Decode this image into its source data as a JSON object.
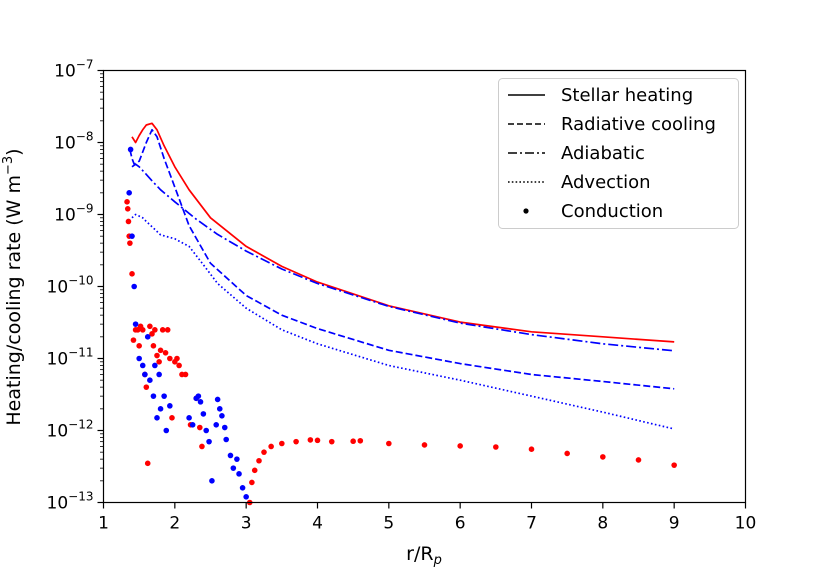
{
  "chart_data": {
    "type": "line",
    "title": "",
    "xlabel": "r/R",
    "xlabel_sub": "p",
    "ylabel": "Heating/cooling rate (W m",
    "ylabel_sup": "−3",
    "ylabel_close": ")",
    "xlim": [
      1,
      10
    ],
    "ylim": [
      1e-13,
      1e-07
    ],
    "yscale": "log",
    "x_ticks": [
      "1",
      "2",
      "3",
      "4",
      "5",
      "6",
      "7",
      "8",
      "9",
      "10"
    ],
    "y_ticks": [
      {
        "base": "10",
        "exp": "−13"
      },
      {
        "base": "10",
        "exp": "−12"
      },
      {
        "base": "10",
        "exp": "−11"
      },
      {
        "base": "10",
        "exp": "−10"
      },
      {
        "base": "10",
        "exp": "−9"
      },
      {
        "base": "10",
        "exp": "−8"
      },
      {
        "base": "10",
        "exp": "−7"
      }
    ],
    "legend_position": "top-right",
    "legend": [
      {
        "label": "Stellar heating",
        "style": "solid"
      },
      {
        "label": "Radiative cooling",
        "style": "dashed"
      },
      {
        "label": "Adiabatic",
        "style": "dashdot"
      },
      {
        "label": "Advection",
        "style": "dotted"
      },
      {
        "label": "Conduction",
        "style": "marker"
      }
    ],
    "colors": {
      "heating": "#ff0000",
      "cooling": "#0000ff",
      "legend_line": "#000000"
    },
    "series": [
      {
        "name": "Stellar heating",
        "color": "#ff0000",
        "style": "solid",
        "x": [
          1.4,
          1.45,
          1.5,
          1.55,
          1.6,
          1.68,
          1.75,
          1.85,
          2.0,
          2.2,
          2.5,
          3.0,
          3.5,
          4.0,
          5.0,
          6.0,
          7.0,
          8.0,
          9.0
        ],
        "y": [
          1.2e-08,
          1e-08,
          1.25e-08,
          1.5e-08,
          1.75e-08,
          1.85e-08,
          1.5e-08,
          9e-09,
          4.6e-09,
          2.2e-09,
          9e-10,
          3.6e-10,
          1.9e-10,
          1.15e-10,
          5.4e-11,
          3.2e-11,
          2.35e-11,
          2e-11,
          1.7e-11
        ]
      },
      {
        "name": "Radiative cooling",
        "color": "#0000ff",
        "style": "dashed",
        "x": [
          1.37,
          1.4,
          1.43,
          1.5,
          1.6,
          1.68,
          1.75,
          1.85,
          2.0,
          2.2,
          2.5,
          3.0,
          3.5,
          4.0,
          5.0,
          6.0,
          7.0,
          8.0,
          9.0
        ],
        "y": [
          8e-09,
          6e-09,
          5e-09,
          5.5e-09,
          1e-08,
          1.5e-08,
          1.2e-08,
          6e-09,
          2.4e-09,
          7e-10,
          2.1e-10,
          7.5e-11,
          4e-11,
          2.6e-11,
          1.3e-11,
          8.5e-12,
          6e-12,
          4.8e-12,
          3.8e-12
        ]
      },
      {
        "name": "Adiabatic",
        "color": "#0000ff",
        "style": "dashdot",
        "x": [
          1.4,
          1.45,
          1.5,
          1.6,
          1.7,
          1.8,
          2.0,
          2.3,
          2.6,
          3.0,
          3.5,
          4.0,
          5.0,
          6.0,
          7.0,
          8.0,
          9.0
        ],
        "y": [
          4.6e-09,
          5e-09,
          4.6e-09,
          3.6e-09,
          2.8e-09,
          2.2e-09,
          1.5e-09,
          8.6e-10,
          5.3e-10,
          3.1e-10,
          1.75e-10,
          1.1e-10,
          5.3e-11,
          3.1e-11,
          2.15e-11,
          1.6e-11,
          1.28e-11
        ]
      },
      {
        "name": "Advection",
        "color": "#0000ff",
        "style": "dotted",
        "x": [
          1.4,
          1.45,
          1.5,
          1.55,
          1.6,
          1.7,
          1.8,
          2.0,
          2.2,
          2.4,
          2.6,
          3.0,
          3.5,
          4.0,
          5.0,
          6.0,
          7.0,
          8.0,
          9.0
        ],
        "y": [
          9e-10,
          1e-09,
          9.5e-10,
          9e-10,
          8e-10,
          6.5e-10,
          5.2e-10,
          4.6e-10,
          3.6e-10,
          2e-10,
          1.1e-10,
          5e-11,
          2.5e-11,
          1.6e-11,
          8e-12,
          5e-12,
          3e-12,
          1.8e-12,
          1.05e-12
        ]
      },
      {
        "name": "Conduction (heating)",
        "color": "#ff0000",
        "style": "marker",
        "x": [
          1.33,
          1.34,
          1.35,
          1.36,
          1.37,
          1.4,
          1.42,
          1.45,
          1.48,
          1.5,
          1.52,
          1.55,
          1.58,
          1.6,
          1.62,
          1.65,
          1.68,
          1.7,
          1.72,
          1.75,
          1.78,
          1.8,
          1.83,
          1.87,
          1.9,
          1.93,
          1.96,
          2.0,
          2.03,
          2.06,
          2.1,
          2.15,
          2.22,
          2.3,
          2.35,
          2.38,
          3.05,
          3.08,
          3.12,
          3.18,
          3.25,
          3.35,
          3.5,
          3.7,
          3.9,
          4.0,
          4.2,
          4.5,
          4.6,
          5.0,
          5.5,
          6.0,
          6.5,
          7.0,
          7.5,
          8.0,
          8.5,
          9.0
        ],
        "y": [
          1.5e-09,
          1.2e-09,
          8e-10,
          5e-10,
          4e-10,
          1.5e-10,
          1.8e-11,
          2.5e-11,
          2.5e-11,
          1.5e-11,
          2.8e-11,
          2.5e-11,
          6e-12,
          4e-12,
          3.5e-13,
          2.8e-11,
          2.2e-11,
          1.5e-11,
          2.5e-11,
          1.1e-11,
          9e-12,
          1.3e-11,
          2.5e-11,
          1.2e-11,
          2.5e-11,
          1e-11,
          1.5e-12,
          9e-12,
          1e-11,
          8e-12,
          6e-12,
          6e-12,
          1.2e-12,
          2.8e-12,
          1.1e-12,
          6e-13,
          1e-13,
          1.9e-13,
          2.8e-13,
          3.8e-13,
          5e-13,
          6e-13,
          6.6e-13,
          7e-13,
          7.4e-13,
          7.3e-13,
          7e-13,
          7.1e-13,
          7.2e-13,
          6.6e-13,
          6.3e-13,
          6.1e-13,
          5.9e-13,
          5.5e-13,
          4.8e-13,
          4.3e-13,
          3.9e-13,
          3.3e-13
        ]
      },
      {
        "name": "Conduction (cooling)",
        "color": "#0000ff",
        "style": "marker",
        "x": [
          1.36,
          1.38,
          1.4,
          1.43,
          1.45,
          1.5,
          1.55,
          1.58,
          1.62,
          1.65,
          1.7,
          1.72,
          1.75,
          1.78,
          1.8,
          1.85,
          1.88,
          1.93,
          2.2,
          2.25,
          2.3,
          2.33,
          2.36,
          2.4,
          2.44,
          2.48,
          2.52,
          2.58,
          2.6,
          2.63,
          2.66,
          2.7,
          2.72,
          2.78,
          2.82,
          2.87,
          2.9,
          2.95,
          3.0
        ],
        "y": [
          2e-09,
          8e-09,
          5e-10,
          1e-10,
          3e-11,
          1e-11,
          8e-12,
          6e-12,
          2e-11,
          5e-12,
          3e-12,
          8e-12,
          1.5e-12,
          6e-12,
          2e-12,
          3e-12,
          1e-12,
          2.2e-12,
          1.5e-12,
          1.2e-12,
          2.8e-12,
          3e-12,
          2.5e-12,
          1.7e-12,
          1e-12,
          7e-13,
          2e-13,
          1.2e-12,
          2.7e-12,
          2e-12,
          1.6e-12,
          1.1e-12,
          7.5e-13,
          4.5e-13,
          3e-13,
          4e-13,
          2.5e-13,
          1.6e-13,
          1.2e-13
        ]
      }
    ]
  }
}
